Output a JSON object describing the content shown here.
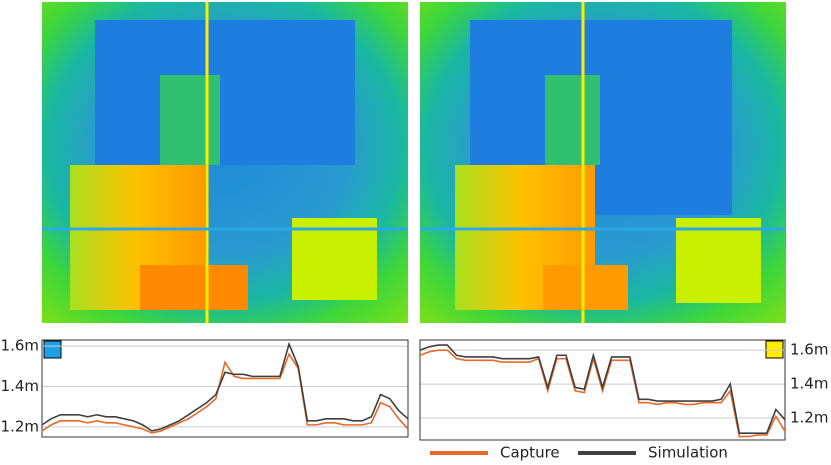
{
  "chart_data": [
    {
      "type": "line",
      "axis_side": "left",
      "grid": true,
      "ylim": [
        1.15,
        1.63
      ],
      "yticks": [
        {
          "value": 1.2,
          "label": "1.2m"
        },
        {
          "value": 1.4,
          "label": "1.4m"
        },
        {
          "value": 1.6,
          "label": "1.6m"
        }
      ],
      "series": [
        {
          "color": "#e8692a",
          "values": [
            1.18,
            1.21,
            1.23,
            1.23,
            1.23,
            1.22,
            1.23,
            1.22,
            1.22,
            1.21,
            1.2,
            1.19,
            1.17,
            1.18,
            1.2,
            1.22,
            1.24,
            1.27,
            1.3,
            1.34,
            1.52,
            1.45,
            1.44,
            1.44,
            1.44,
            1.44,
            1.44,
            1.56,
            1.49,
            1.21,
            1.21,
            1.22,
            1.22,
            1.21,
            1.21,
            1.21,
            1.22,
            1.32,
            1.3,
            1.24,
            1.19
          ]
        },
        {
          "color": "#404040",
          "values": [
            1.21,
            1.24,
            1.26,
            1.26,
            1.26,
            1.25,
            1.26,
            1.25,
            1.25,
            1.24,
            1.23,
            1.21,
            1.18,
            1.19,
            1.21,
            1.23,
            1.26,
            1.29,
            1.32,
            1.36,
            1.47,
            1.46,
            1.46,
            1.45,
            1.45,
            1.45,
            1.45,
            1.61,
            1.5,
            1.23,
            1.23,
            1.24,
            1.24,
            1.24,
            1.23,
            1.23,
            1.25,
            1.36,
            1.34,
            1.28,
            1.24
          ]
        }
      ]
    },
    {
      "type": "line",
      "axis_side": "right",
      "grid": true,
      "ylim": [
        1.07,
        1.66
      ],
      "legend": "bottom",
      "yticks": [
        {
          "value": 1.2,
          "label": "1.2m"
        },
        {
          "value": 1.4,
          "label": "1.4m"
        },
        {
          "value": 1.6,
          "label": "1.6m"
        }
      ],
      "series": [
        {
          "name": "Capture",
          "color": "#e8692a",
          "values": [
            1.57,
            1.59,
            1.6,
            1.6,
            1.55,
            1.54,
            1.54,
            1.54,
            1.54,
            1.53,
            1.53,
            1.53,
            1.53,
            1.55,
            1.36,
            1.55,
            1.55,
            1.36,
            1.35,
            1.55,
            1.36,
            1.54,
            1.54,
            1.54,
            1.29,
            1.29,
            1.28,
            1.29,
            1.29,
            1.28,
            1.28,
            1.29,
            1.29,
            1.29,
            1.36,
            1.09,
            1.09,
            1.1,
            1.1,
            1.21,
            1.12
          ]
        },
        {
          "name": "Simulation",
          "color": "#404040",
          "values": [
            1.6,
            1.62,
            1.63,
            1.63,
            1.57,
            1.56,
            1.56,
            1.56,
            1.56,
            1.55,
            1.55,
            1.55,
            1.55,
            1.56,
            1.38,
            1.57,
            1.57,
            1.38,
            1.37,
            1.57,
            1.38,
            1.56,
            1.56,
            1.56,
            1.31,
            1.31,
            1.3,
            1.3,
            1.3,
            1.3,
            1.3,
            1.3,
            1.3,
            1.31,
            1.4,
            1.11,
            1.11,
            1.11,
            1.11,
            1.25,
            1.19
          ]
        }
      ]
    }
  ]
}
